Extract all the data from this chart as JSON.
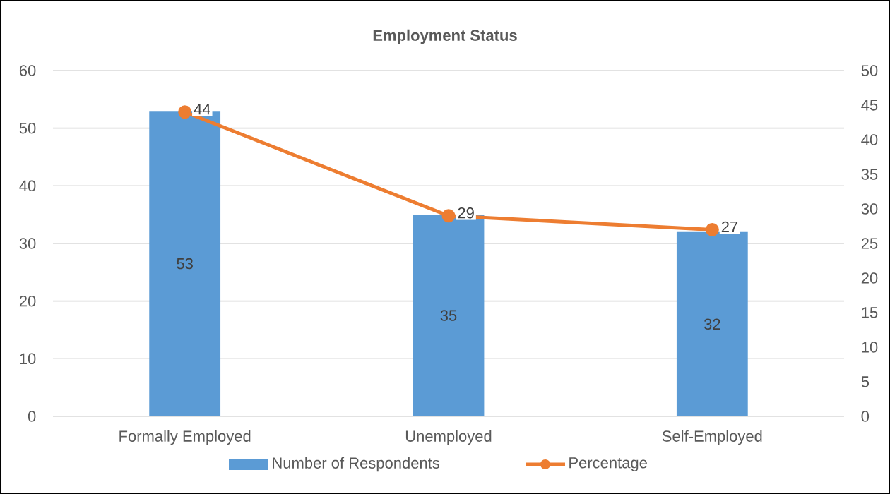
{
  "chart_data": {
    "type": "bar",
    "title": "Employment Status",
    "categories": [
      "Formally Employed",
      "Unemployed",
      "Self-Employed"
    ],
    "series": [
      {
        "name": "Number of Respondents",
        "color": "#5b9bd5",
        "values": [
          53,
          35,
          32
        ]
      },
      {
        "name": "Percentage",
        "type": "line",
        "axis": "y2",
        "color": "#ed7d31",
        "values": [
          44,
          29,
          27
        ],
        "marker": "circle"
      }
    ],
    "ylim": [
      0,
      60
    ],
    "yticks": [
      0,
      10,
      20,
      30,
      40,
      50,
      60
    ],
    "y2lim": [
      0,
      50
    ],
    "y2ticks": [
      0,
      5,
      10,
      15,
      20,
      25,
      30,
      35,
      40,
      45,
      50
    ],
    "grid": "y",
    "legend": "bottom",
    "data_labels": true
  }
}
